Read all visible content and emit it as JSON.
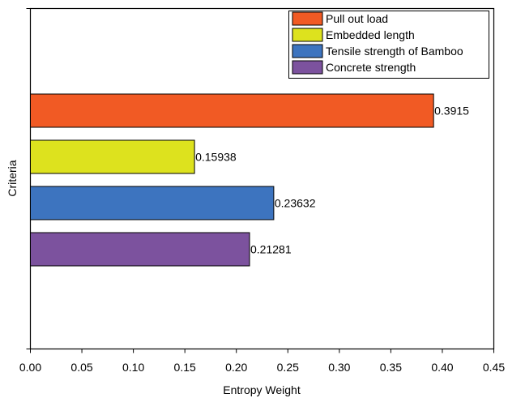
{
  "chart_data": {
    "type": "bar",
    "orientation": "horizontal",
    "xlabel": "Entropy Weight",
    "ylabel": "Criteria",
    "xlim": [
      0,
      0.45
    ],
    "x_ticks": [
      "0.00",
      "0.05",
      "0.10",
      "0.15",
      "0.20",
      "0.25",
      "0.30",
      "0.35",
      "0.40",
      "0.45"
    ],
    "grid": false,
    "legend_position": "top-right",
    "series": [
      {
        "name": "Pull out load",
        "value": 0.3915,
        "label": "0.3915",
        "color": "#f15a24"
      },
      {
        "name": "Embedded length",
        "value": 0.15938,
        "label": "0.15938",
        "color": "#dde21e"
      },
      {
        "name": "Tensile strength of Bamboo",
        "value": 0.23632,
        "label": "0.23632",
        "color": "#3d74bf"
      },
      {
        "name": "Concrete strength",
        "value": 0.21281,
        "label": "0.21281",
        "color": "#7c529e"
      }
    ]
  }
}
